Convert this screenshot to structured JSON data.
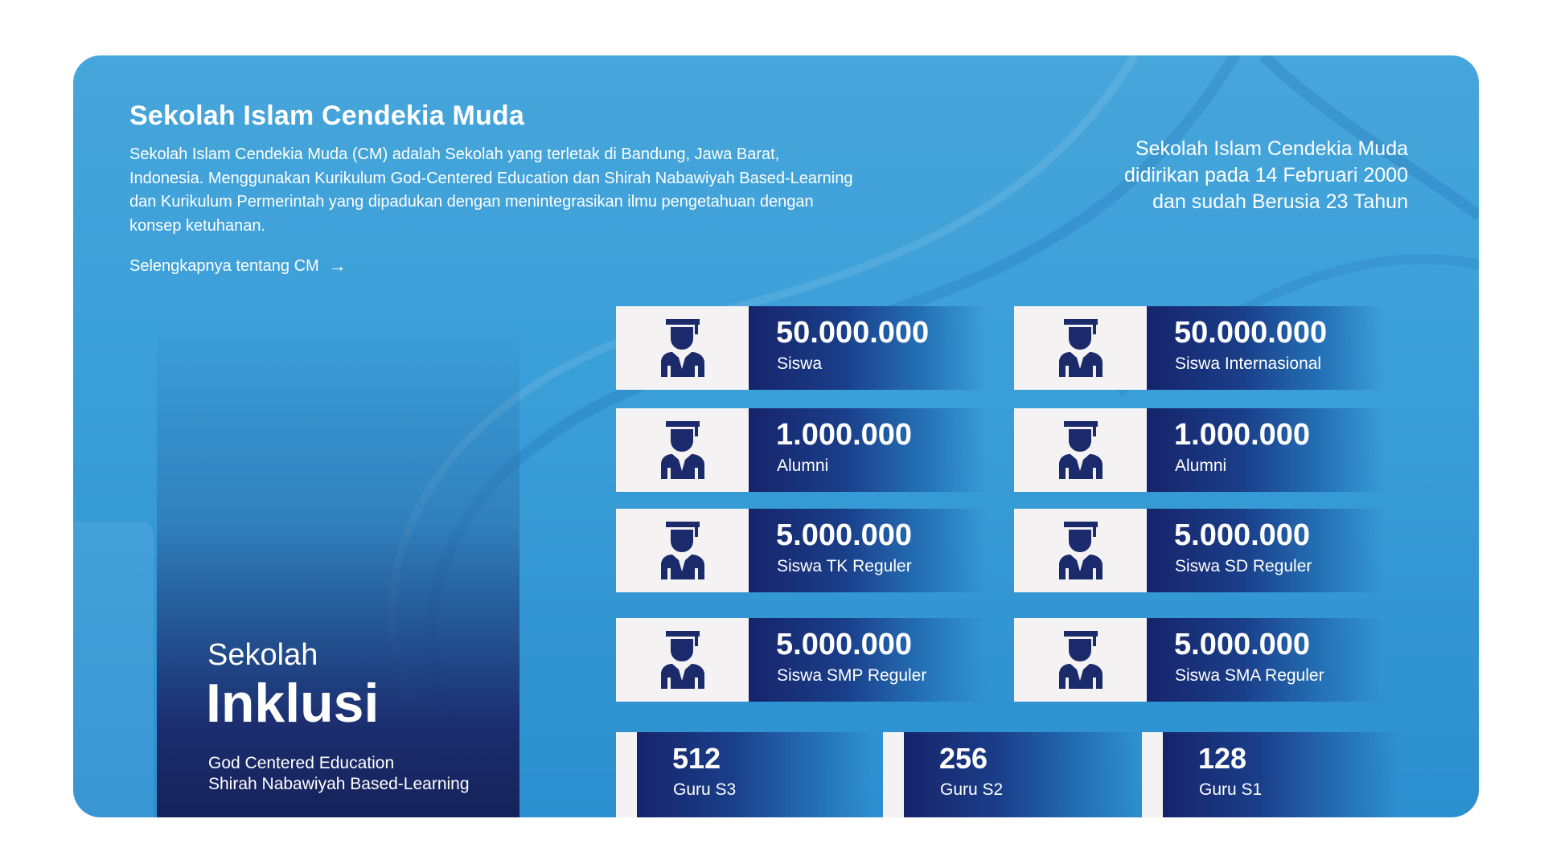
{
  "header": {
    "title": "Sekolah Islam Cendekia Muda",
    "description": "Sekolah Islam Cendekia Muda (CM) adalah Sekolah yang terletak di Bandung, Jawa Barat, Indonesia. Menggunakan Kurikulum God-Centered Education dan Shirah Nabawiyah Based-Learning dan Kurikulum Permerintah yang dipadukan dengan menintegrasikan ilmu pengetahuan dengan konsep ketuhanan.",
    "more_link": "Selengkapnya tentang CM",
    "more_icon": "arrow-right-icon"
  },
  "founded": {
    "line1": "Sekolah Islam Cendekia Muda",
    "line2": "didirikan pada 14 Februari 2000",
    "line3": "dan sudah Berusia 23 Tahun"
  },
  "inklusi": {
    "small": "Sekolah",
    "big": "Inklusi",
    "sub1": "God Centered Education",
    "sub2": "Shirah Nabawiyah Based-Learning"
  },
  "stats": [
    {
      "value": "50.000.000",
      "label": "Siswa",
      "icon": "graduate-student-icon"
    },
    {
      "value": "50.000.000",
      "label": "Siswa Internasional",
      "icon": "graduate-student-icon"
    },
    {
      "value": "1.000.000",
      "label": "Alumni",
      "icon": "graduate-student-icon"
    },
    {
      "value": "1.000.000",
      "label": "Alumni",
      "icon": "graduate-student-icon"
    },
    {
      "value": "5.000.000",
      "label": "Siswa TK Reguler",
      "icon": "graduate-student-icon"
    },
    {
      "value": "5.000.000",
      "label": "Siswa SD Reguler",
      "icon": "graduate-student-icon"
    },
    {
      "value": "5.000.000",
      "label": "Siswa SMP Reguler",
      "icon": "graduate-student-icon"
    },
    {
      "value": "5.000.000",
      "label": "Siswa SMA Reguler",
      "icon": "graduate-student-icon"
    }
  ],
  "teachers": [
    {
      "value": "512",
      "label": "Guru S3"
    },
    {
      "value": "256",
      "label": "Guru S2"
    },
    {
      "value": "128",
      "label": "Guru S1"
    }
  ],
  "colors": {
    "card_top": "#47a6db",
    "card_bottom": "#2c8fcf",
    "navy": "#16246a",
    "icon_bg": "#f4f2f3",
    "icon_fill": "#1b2a6b"
  }
}
